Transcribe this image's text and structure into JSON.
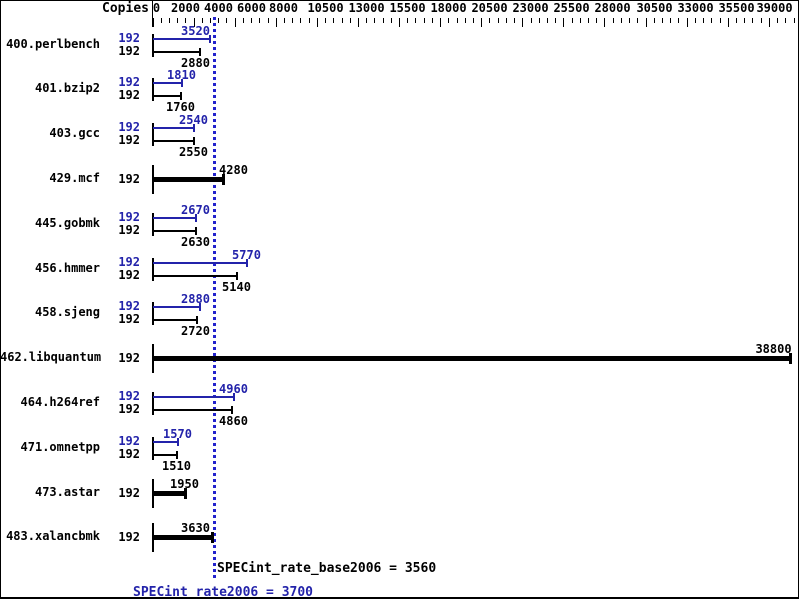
{
  "header": {
    "copies_label": "Copies"
  },
  "summary": {
    "base_text": "SPECint_rate_base2006 = 3560",
    "peak_text": "SPECint_rate2006 = 3700"
  },
  "colors": {
    "peak_blue": "#2323aa",
    "base_black": "#000000",
    "ref_line_blue": "#2222cc",
    "background": "#ffffff"
  },
  "chart_data": {
    "type": "bar",
    "orientation": "horizontal",
    "copies_header": "Copies",
    "x_axis": {
      "range": [
        0,
        39200
      ],
      "minor_tick_interval": 500,
      "major_tick_interval": 2500,
      "labels": [
        0,
        2000,
        4000,
        6000,
        8000,
        10500,
        13000,
        15500,
        18000,
        20500,
        23000,
        25500,
        28000,
        30500,
        33000,
        35500,
        39000
      ],
      "grid": false
    },
    "series": [
      {
        "benchmark": "400.perlbench",
        "copies": 192,
        "peak": 3520,
        "base": 2880
      },
      {
        "benchmark": "401.bzip2",
        "copies": 192,
        "peak": 1810,
        "base": 1760
      },
      {
        "benchmark": "403.gcc",
        "copies": 192,
        "peak": 2540,
        "base": 2550
      },
      {
        "benchmark": "429.mcf",
        "copies": 192,
        "peak": null,
        "base": 4280
      },
      {
        "benchmark": "445.gobmk",
        "copies": 192,
        "peak": 2670,
        "base": 2630
      },
      {
        "benchmark": "456.hmmer",
        "copies": 192,
        "peak": 5770,
        "base": 5140
      },
      {
        "benchmark": "458.sjeng",
        "copies": 192,
        "peak": 2880,
        "base": 2720
      },
      {
        "benchmark": "462.libquantum",
        "copies": 192,
        "peak": null,
        "base": 38800
      },
      {
        "benchmark": "464.h264ref",
        "copies": 192,
        "peak": 4960,
        "base": 4860
      },
      {
        "benchmark": "471.omnetpp",
        "copies": 192,
        "peak": 1570,
        "base": 1510
      },
      {
        "benchmark": "473.astar",
        "copies": 192,
        "peak": null,
        "base": 1950
      },
      {
        "benchmark": "483.xalancbmk",
        "copies": 192,
        "peak": null,
        "base": 3630
      }
    ],
    "reference_line": {
      "value": 3700
    },
    "summary": {
      "base": 3560,
      "peak": 3700
    }
  }
}
